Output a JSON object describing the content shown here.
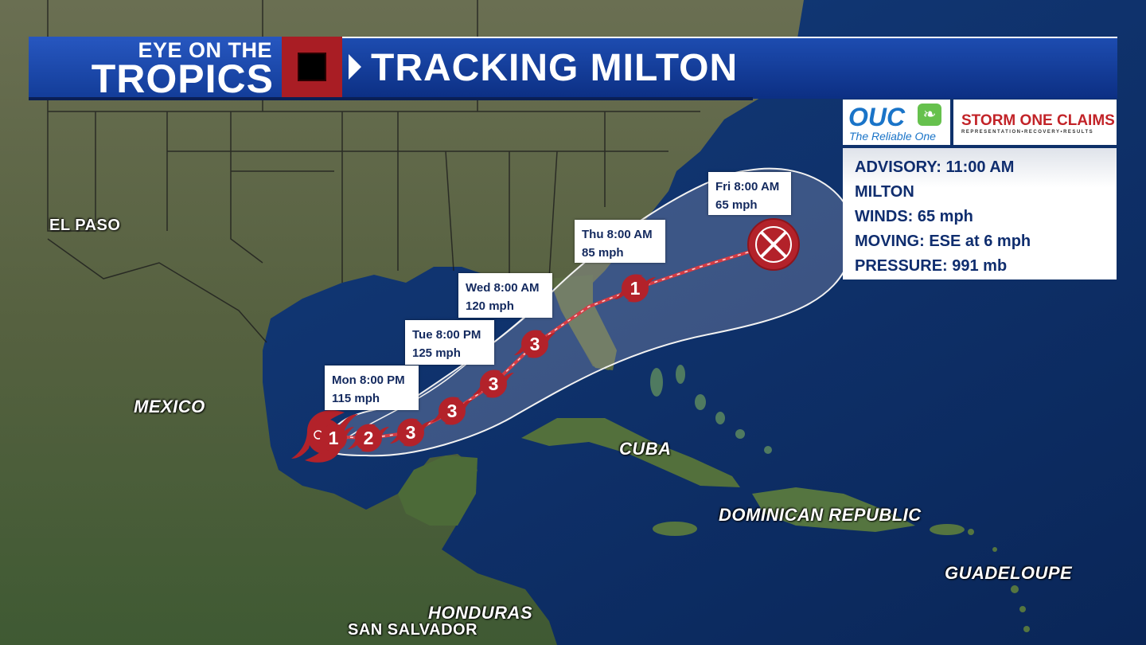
{
  "header": {
    "brand_line1": "EYE ON THE",
    "brand_line2": "TROPICS",
    "title": "TRACKING MILTON"
  },
  "sponsors": {
    "ouc_name": "OUC",
    "ouc_tagline": "The Reliable One",
    "storm_name": "STORM ONE CLAIMS",
    "storm_tagline": "REPRESENTATION•RECOVERY•RESULTS"
  },
  "advisory": {
    "advisory": "ADVISORY: 11:00 AM",
    "name": "MILTON",
    "winds": "WINDS:  65 mph",
    "moving": "MOVING:  ESE at 6 mph",
    "pressure": "PRESSURE:   991 mb"
  },
  "callouts": [
    {
      "time": "Mon 8:00 PM",
      "speed": "115 mph"
    },
    {
      "time": "Tue 8:00 PM",
      "speed": "125 mph"
    },
    {
      "time": "Wed 8:00 AM",
      "speed": "120 mph"
    },
    {
      "time": "Thu 8:00 AM",
      "speed": "85 mph"
    },
    {
      "time": "Fri 8:00 AM",
      "speed": "65 mph"
    }
  ],
  "track_points": [
    "1",
    "2",
    "3",
    "3",
    "3",
    "3",
    "1"
  ],
  "places": {
    "el_paso": "EL PASO",
    "mexico": "MEXICO",
    "cuba": "CUBA",
    "dominican_republic": "DOMINICAN REPUBLIC",
    "guadeloupe": "GUADELOUPE",
    "honduras": "HONDURAS",
    "san_salvador": "SAN SALVADOR"
  },
  "colors": {
    "banner_blue": "#1d4cb0",
    "storm_red": "#b3222a",
    "ocean": "#0b2d66",
    "land": "#4d5a3a"
  },
  "icons": {
    "hurricane": "hurricane-icon",
    "post_tropical": "x-circle-icon"
  }
}
